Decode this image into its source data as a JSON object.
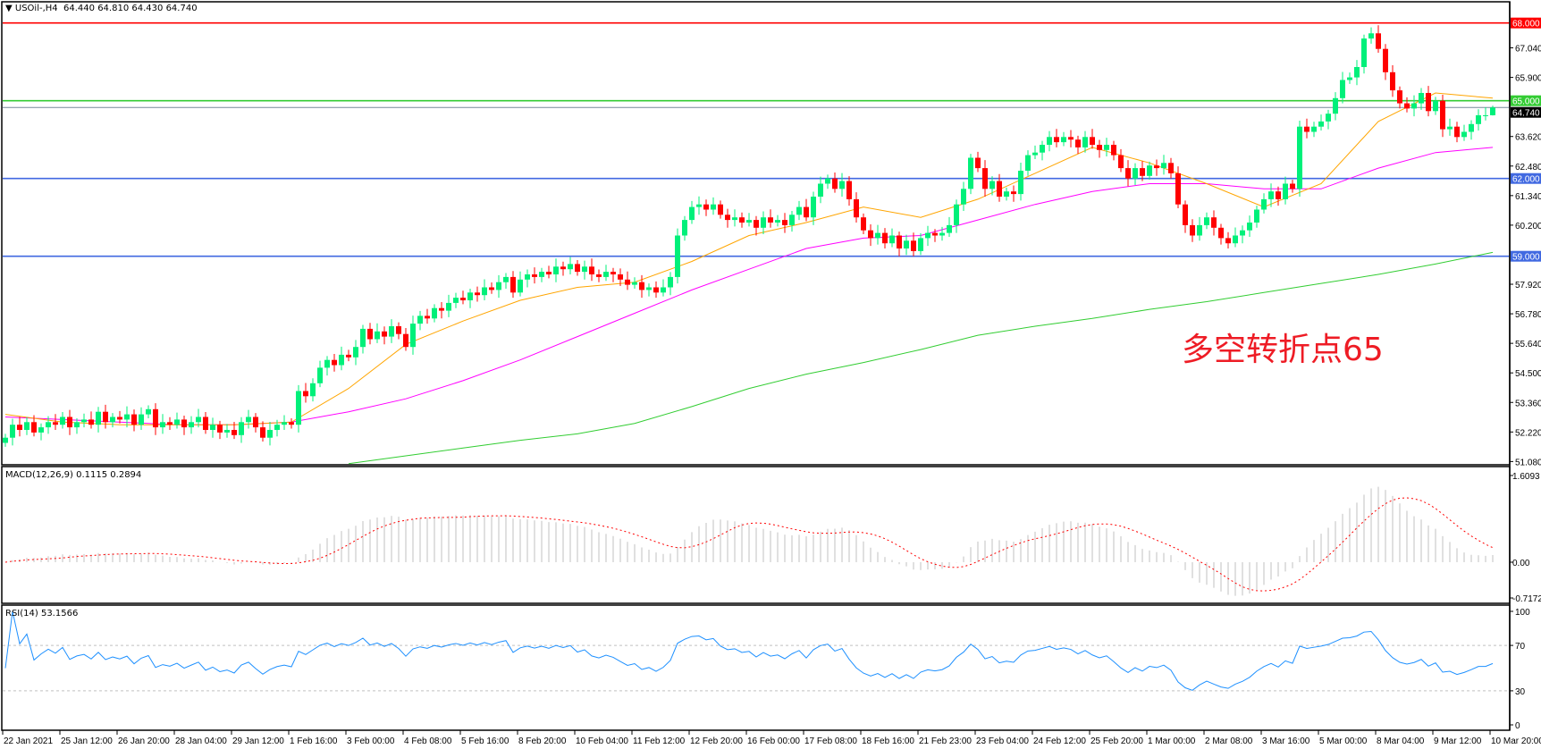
{
  "header": {
    "symbol": "USOil-,H4",
    "open": "64.440",
    "high": "64.810",
    "low": "64.430",
    "close": "64.740"
  },
  "macd_panel": {
    "label": "MACD(12,26,9) 0.1115 0.2894",
    "axis_labels": [
      "1.6093",
      "0.00",
      "-0.7172"
    ],
    "axis_values": [
      1.6093,
      0,
      -0.7172
    ]
  },
  "rsi_panel": {
    "label": "RSI(14) 53.1566",
    "axis_labels": [
      "100",
      "70",
      "30",
      "0"
    ],
    "levels": [
      70,
      30
    ]
  },
  "annotation": {
    "text": "多空转折点65",
    "color": "#ee1c25"
  },
  "colors": {
    "bull": "#00f07a",
    "bear": "#ff0000",
    "ma_fast": "#ffa500",
    "ma_mid": "#ff00ff",
    "ma_slow": "#32cd32",
    "macd_hist": "#c0c0c0",
    "macd_signal": "#ff0000",
    "rsi": "#1e90ff"
  },
  "chart_data": {
    "type": "candlestick",
    "symbol": "USOil-",
    "timeframe": "H4",
    "price_axis_labels": [
      "67.040",
      "65.900",
      "63.620",
      "62.480",
      "61.340",
      "60.200",
      "57.920",
      "56.780",
      "55.640",
      "54.500",
      "53.360",
      "52.220",
      "51.080"
    ],
    "ylim": [
      50.85,
      68.82
    ],
    "horizontal_lines": [
      {
        "value": 68.0,
        "label": "68.000",
        "color": "#ff0000"
      },
      {
        "value": 65.0,
        "label": "65.000",
        "color": "#33cc33"
      },
      {
        "value": 64.74,
        "label": "64.740",
        "color": "#000000",
        "kind": "bid"
      },
      {
        "value": 62.0,
        "label": "62.000",
        "color": "#4169e1"
      },
      {
        "value": 59.0,
        "label": "59.000",
        "color": "#4169e1"
      }
    ],
    "time_labels": [
      "22 Jan 2021",
      "25 Jan 12:00",
      "26 Jan 20:00",
      "28 Jan 04:00",
      "29 Jan 12:00",
      "1 Feb 16:00",
      "3 Feb 00:00",
      "4 Feb 08:00",
      "5 Feb 16:00",
      "8 Feb 20:00",
      "10 Feb 04:00",
      "11 Feb 12:00",
      "12 Feb 20:00",
      "16 Feb 00:00",
      "17 Feb 08:00",
      "18 Feb 16:00",
      "21 Feb 23:00",
      "23 Feb 04:00",
      "24 Feb 12:00",
      "25 Feb 20:00",
      "1 Mar 00:00",
      "2 Mar 08:00",
      "3 Mar 16:00",
      "5 Mar 00:00",
      "8 Mar 04:00",
      "9 Mar 12:00",
      "10 Mar 20:00"
    ],
    "bars_per_time_label": 8,
    "close": [
      52.0,
      52.5,
      52.3,
      52.6,
      52.2,
      52.4,
      52.6,
      52.5,
      52.8,
      52.4,
      52.6,
      52.7,
      52.5,
      53.0,
      52.6,
      52.8,
      52.7,
      52.9,
      52.5,
      52.9,
      53.1,
      52.4,
      52.6,
      52.5,
      52.7,
      52.4,
      52.6,
      52.8,
      52.3,
      52.5,
      52.2,
      52.3,
      52.1,
      52.6,
      52.8,
      52.4,
      52.0,
      52.3,
      52.5,
      52.6,
      52.5,
      53.8,
      53.6,
      54.1,
      54.7,
      55.0,
      54.8,
      55.2,
      55.1,
      55.5,
      56.2,
      55.8,
      56.1,
      55.9,
      56.3,
      56.0,
      55.5,
      56.4,
      56.7,
      56.6,
      57.0,
      56.9,
      57.2,
      57.4,
      57.3,
      57.6,
      57.5,
      57.8,
      57.7,
      58.0,
      58.2,
      57.6,
      58.1,
      58.3,
      58.2,
      58.4,
      58.3,
      58.6,
      58.5,
      58.7,
      58.4,
      58.6,
      58.3,
      58.2,
      58.4,
      58.3,
      58.1,
      57.9,
      58.0,
      57.7,
      57.8,
      57.6,
      57.8,
      58.2,
      59.8,
      60.4,
      60.9,
      61.0,
      60.8,
      61.0,
      60.6,
      60.4,
      60.5,
      60.3,
      60.4,
      60.1,
      60.5,
      60.3,
      60.4,
      60.2,
      60.6,
      60.9,
      60.5,
      61.3,
      61.8,
      62.0,
      61.6,
      61.9,
      61.2,
      60.5,
      60.0,
      59.7,
      59.9,
      59.5,
      59.8,
      59.3,
      59.6,
      59.2,
      59.7,
      59.9,
      59.8,
      59.9,
      60.2,
      61.0,
      61.6,
      62.8,
      62.4,
      61.6,
      61.9,
      61.3,
      61.5,
      61.4,
      62.3,
      62.9,
      63.0,
      63.3,
      63.6,
      63.4,
      63.6,
      63.5,
      63.2,
      63.6,
      63.3,
      63.1,
      63.3,
      62.9,
      62.4,
      62.0,
      62.4,
      62.1,
      62.5,
      62.4,
      62.6,
      62.2,
      61.0,
      60.2,
      59.8,
      60.2,
      60.5,
      60.1,
      59.7,
      59.5,
      59.8,
      60.0,
      60.3,
      60.8,
      61.2,
      61.5,
      61.2,
      61.8,
      61.6,
      64.0,
      63.8,
      64.0,
      64.2,
      64.5,
      65.1,
      65.8,
      65.9,
      66.3,
      67.4,
      67.6,
      67.0,
      66.1,
      65.4,
      64.9,
      64.7,
      64.9,
      65.3,
      64.6,
      65.0,
      63.9,
      64.0,
      63.6,
      63.8,
      64.1,
      64.44,
      64.44,
      64.74
    ],
    "last_bar": {
      "open": 64.44,
      "high": 64.81,
      "low": 64.43,
      "close": 64.74
    },
    "moving_averages_at_time_labels": {
      "orange": [
        52.9,
        52.6,
        52.5,
        52.5,
        52.5,
        52.6,
        53.9,
        55.6,
        56.5,
        57.3,
        57.8,
        58.0,
        58.8,
        59.8,
        60.3,
        60.9,
        60.5,
        61.2,
        62.2,
        63.2,
        62.6,
        61.8,
        60.9,
        61.8,
        64.2,
        65.3,
        65.1
      ],
      "magenta": [
        52.8,
        52.7,
        52.6,
        52.5,
        52.5,
        52.6,
        53.0,
        53.5,
        54.2,
        55.0,
        55.9,
        56.8,
        57.7,
        58.5,
        59.3,
        59.7,
        59.8,
        60.4,
        61.0,
        61.5,
        61.8,
        61.8,
        61.6,
        61.6,
        62.4,
        63.0,
        63.2
      ],
      "green": [
        null,
        null,
        null,
        null,
        null,
        null,
        51.0,
        51.3,
        51.6,
        51.9,
        52.15,
        52.55,
        53.2,
        53.9,
        54.45,
        54.9,
        55.4,
        55.95,
        56.3,
        56.6,
        56.95,
        57.25,
        57.6,
        57.95,
        58.3,
        58.7,
        59.15
      ]
    },
    "indicators": {
      "macd": {
        "fast": 12,
        "slow": 26,
        "signal": 9
      },
      "rsi": {
        "period": 14
      }
    }
  }
}
